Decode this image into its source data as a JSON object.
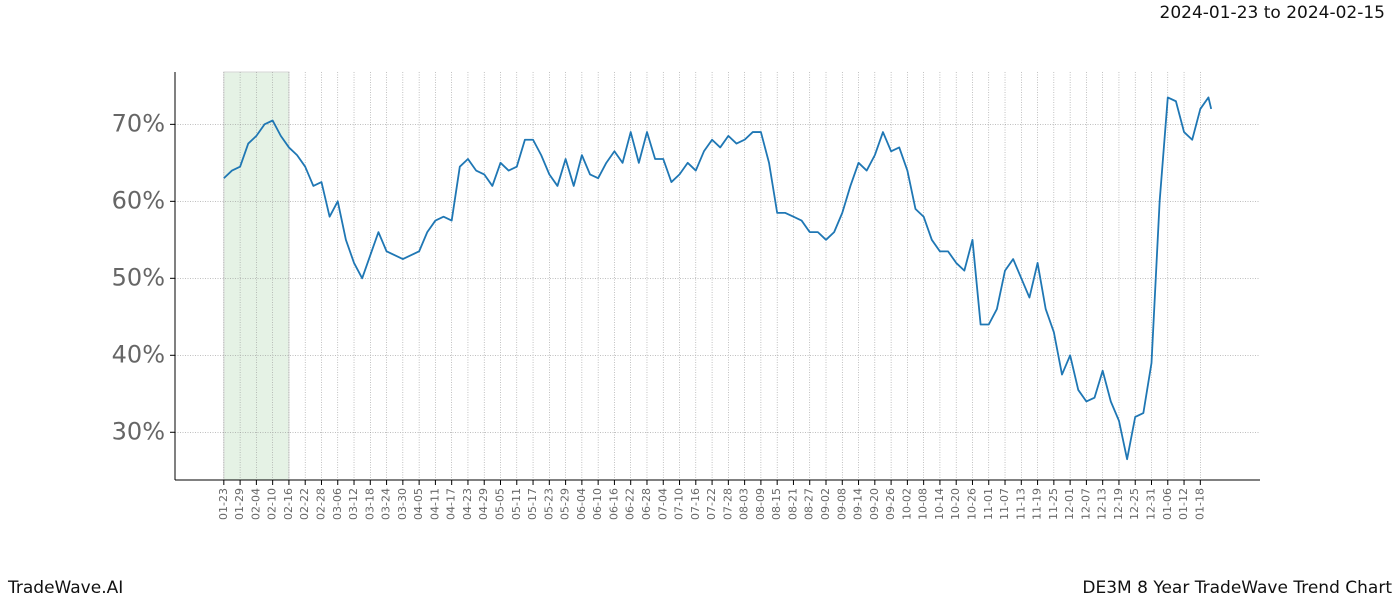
{
  "chart_data": {
    "type": "line",
    "date_range": "2024-01-23 to 2024-02-15",
    "brand": "TradeWave.AI",
    "title": "DE3M 8 Year TradeWave Trend Chart",
    "color": "#1f77b4",
    "highlight_color": "#d5ead5",
    "highlight": [
      0,
      24
    ],
    "x": [
      0,
      3,
      6,
      9,
      12,
      15,
      18,
      21,
      24,
      27,
      30,
      33,
      36,
      39,
      42,
      45,
      48,
      51,
      54,
      57,
      60,
      63,
      66,
      69,
      72,
      75,
      78,
      81,
      84,
      87,
      90,
      93,
      96,
      99,
      102,
      105,
      108,
      111,
      114,
      117,
      120,
      123,
      126,
      129,
      132,
      135,
      138,
      141,
      144,
      147,
      150,
      153,
      156,
      159,
      162,
      165,
      168,
      171,
      174,
      177,
      180,
      183,
      186,
      189,
      192,
      195,
      198,
      201,
      204,
      207,
      210,
      213,
      216,
      219,
      222,
      225,
      228,
      231,
      234,
      237,
      240,
      243,
      246,
      249,
      252,
      255,
      258,
      261,
      264,
      267,
      270,
      273,
      276,
      279,
      282,
      285,
      288,
      291,
      294,
      297,
      300,
      303,
      306,
      309,
      312,
      315,
      318,
      321,
      324,
      327,
      330,
      333,
      336,
      339,
      342,
      345,
      348,
      351,
      354,
      357,
      360,
      363,
      364
    ],
    "values": [
      63,
      64,
      64.5,
      67.5,
      68.5,
      70,
      70.5,
      68.5,
      67,
      66,
      64.5,
      62,
      62.5,
      58,
      60,
      55,
      52,
      50,
      53,
      56,
      53.5,
      53,
      52.5,
      53,
      53.5,
      56,
      57.5,
      58,
      57.5,
      64.5,
      65.5,
      64,
      63.5,
      62,
      65,
      64,
      64.5,
      68,
      68,
      66,
      63.5,
      62,
      65.5,
      62,
      66,
      63.5,
      63,
      65,
      66.5,
      65,
      69,
      65,
      69,
      65.5,
      65.5,
      62.5,
      63.5,
      65,
      64,
      66.5,
      68,
      67,
      68.5,
      67.5,
      68,
      69,
      69,
      65,
      58.5,
      58.5,
      58,
      57.5,
      56,
      56,
      55,
      56,
      58.5,
      62,
      65,
      64,
      66,
      69,
      66.5,
      67,
      64,
      59,
      58,
      55,
      53.5,
      53.5,
      52,
      51,
      55,
      44,
      44,
      46,
      51,
      52.5,
      50,
      47.5,
      52,
      46,
      43,
      37.5,
      40,
      35.5,
      34,
      34.5,
      38,
      34,
      31.5,
      26.5,
      32,
      32.5,
      39,
      60,
      73.5,
      73,
      69,
      68,
      72,
      73.5,
      72
    ],
    "xlim": [
      -18,
      382
    ],
    "ylim": [
      23.8,
      76.8
    ],
    "yticks": [
      {
        "value": 30,
        "label": "30%"
      },
      {
        "value": 40,
        "label": "40%"
      },
      {
        "value": 50,
        "label": "50%"
      },
      {
        "value": 60,
        "label": "60%"
      },
      {
        "value": 70,
        "label": "70%"
      }
    ],
    "xticks": [
      {
        "value": 0,
        "label": "01-23"
      },
      {
        "value": 6,
        "label": "01-29"
      },
      {
        "value": 12,
        "label": "02-04"
      },
      {
        "value": 18,
        "label": "02-10"
      },
      {
        "value": 24,
        "label": "02-16"
      },
      {
        "value": 30,
        "label": "02-22"
      },
      {
        "value": 36,
        "label": "02-28"
      },
      {
        "value": 42,
        "label": "03-06"
      },
      {
        "value": 48,
        "label": "03-12"
      },
      {
        "value": 54,
        "label": "03-18"
      },
      {
        "value": 60,
        "label": "03-24"
      },
      {
        "value": 66,
        "label": "03-30"
      },
      {
        "value": 72,
        "label": "04-05"
      },
      {
        "value": 78,
        "label": "04-11"
      },
      {
        "value": 84,
        "label": "04-17"
      },
      {
        "value": 90,
        "label": "04-23"
      },
      {
        "value": 96,
        "label": "04-29"
      },
      {
        "value": 102,
        "label": "05-05"
      },
      {
        "value": 108,
        "label": "05-11"
      },
      {
        "value": 114,
        "label": "05-17"
      },
      {
        "value": 120,
        "label": "05-23"
      },
      {
        "value": 126,
        "label": "05-29"
      },
      {
        "value": 132,
        "label": "06-04"
      },
      {
        "value": 138,
        "label": "06-10"
      },
      {
        "value": 144,
        "label": "06-16"
      },
      {
        "value": 150,
        "label": "06-22"
      },
      {
        "value": 156,
        "label": "06-28"
      },
      {
        "value": 162,
        "label": "07-04"
      },
      {
        "value": 168,
        "label": "07-10"
      },
      {
        "value": 174,
        "label": "07-16"
      },
      {
        "value": 180,
        "label": "07-22"
      },
      {
        "value": 186,
        "label": "07-28"
      },
      {
        "value": 192,
        "label": "08-03"
      },
      {
        "value": 198,
        "label": "08-09"
      },
      {
        "value": 204,
        "label": "08-15"
      },
      {
        "value": 210,
        "label": "08-21"
      },
      {
        "value": 216,
        "label": "08-27"
      },
      {
        "value": 222,
        "label": "09-02"
      },
      {
        "value": 228,
        "label": "09-08"
      },
      {
        "value": 234,
        "label": "09-14"
      },
      {
        "value": 240,
        "label": "09-20"
      },
      {
        "value": 246,
        "label": "09-26"
      },
      {
        "value": 252,
        "label": "10-02"
      },
      {
        "value": 258,
        "label": "10-08"
      },
      {
        "value": 264,
        "label": "10-14"
      },
      {
        "value": 270,
        "label": "10-20"
      },
      {
        "value": 276,
        "label": "10-26"
      },
      {
        "value": 282,
        "label": "11-01"
      },
      {
        "value": 288,
        "label": "11-07"
      },
      {
        "value": 294,
        "label": "11-13"
      },
      {
        "value": 300,
        "label": "11-19"
      },
      {
        "value": 306,
        "label": "11-25"
      },
      {
        "value": 312,
        "label": "12-01"
      },
      {
        "value": 318,
        "label": "12-07"
      },
      {
        "value": 324,
        "label": "12-13"
      },
      {
        "value": 330,
        "label": "12-19"
      },
      {
        "value": 336,
        "label": "12-25"
      },
      {
        "value": 342,
        "label": "12-31"
      },
      {
        "value": 348,
        "label": "01-06"
      },
      {
        "value": 354,
        "label": "01-12"
      },
      {
        "value": 360,
        "label": "01-18"
      }
    ],
    "grid": true
  }
}
